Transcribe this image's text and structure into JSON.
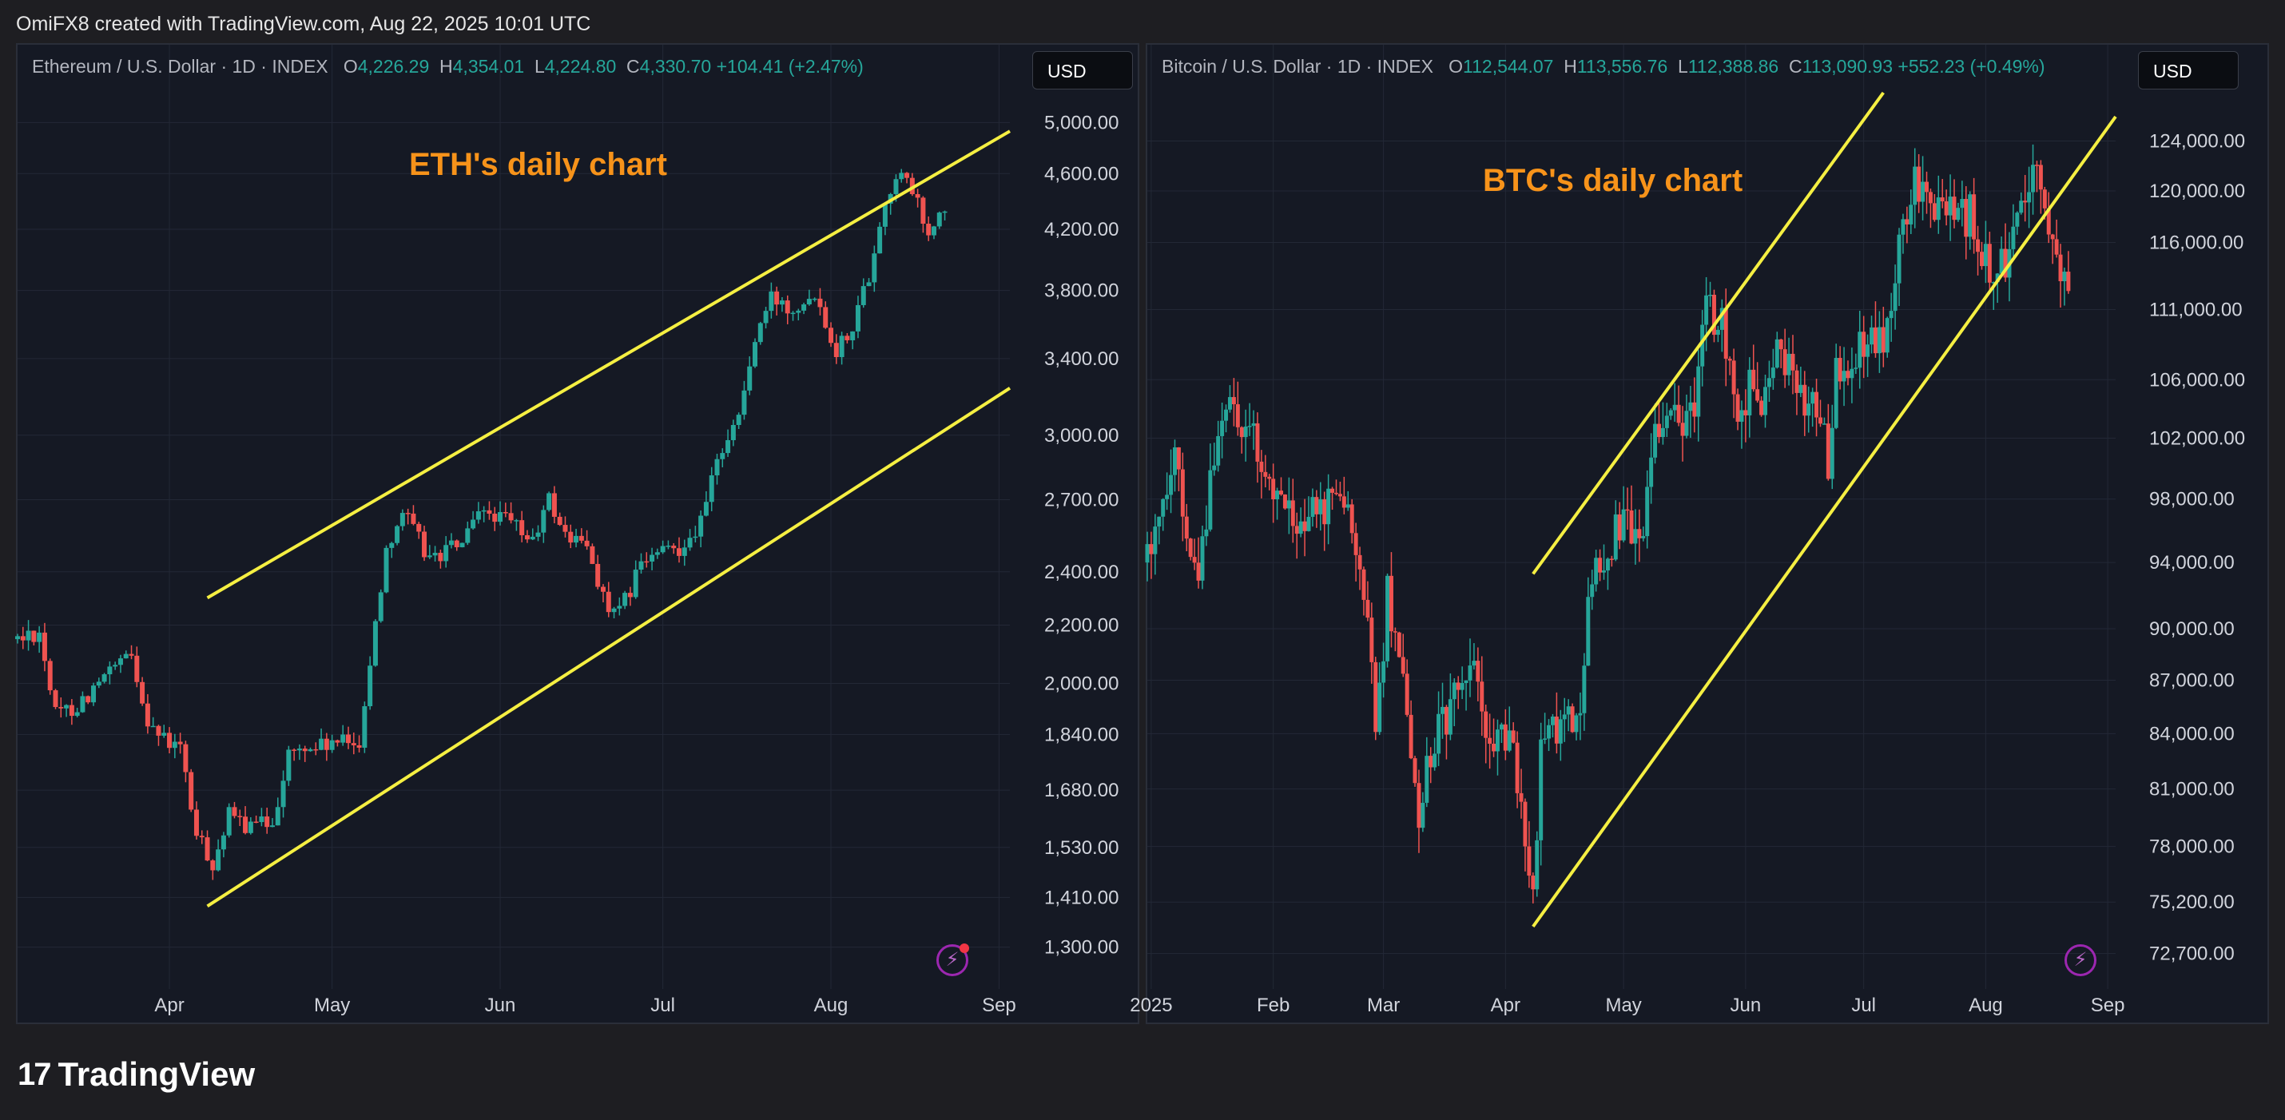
{
  "caption": "OmiFX8 created with TradingView.com, Aug 22, 2025 10:01 UTC",
  "footer_brand": "TradingView",
  "colors": {
    "up": "#26a69a",
    "down": "#ef5350",
    "channel": "#f5ef42",
    "annotation": "#f7931a"
  },
  "charts": [
    {
      "id": "eth",
      "legend": {
        "symbol": "Ethereum / U.S. Dollar · 1D · INDEX",
        "o": "4,226.29",
        "h": "4,354.01",
        "l": "4,224.80",
        "c": "4,330.70",
        "change": "+104.41 (+2.47%)"
      },
      "currency_button": "USD",
      "annotation": "ETH's daily chart",
      "chart_data": {
        "type": "candlestick",
        "title": "ETH's daily chart",
        "y_scale": "log",
        "ylim": [
          1230,
          5250
        ],
        "xlim": [
          "2025-03-04",
          "2025-09-03"
        ],
        "y_ticks": [
          {
            "v": 5000,
            "label": "5,000.00"
          },
          {
            "v": 4600,
            "label": "4,600.00"
          },
          {
            "v": 4200,
            "label": "4,200.00"
          },
          {
            "v": 3800,
            "label": "3,800.00"
          },
          {
            "v": 3400,
            "label": "3,400.00"
          },
          {
            "v": 3000,
            "label": "3,000.00"
          },
          {
            "v": 2700,
            "label": "2,700.00"
          },
          {
            "v": 2400,
            "label": "2,400.00"
          },
          {
            "v": 2200,
            "label": "2,200.00"
          },
          {
            "v": 2000,
            "label": "2,000.00"
          },
          {
            "v": 1840,
            "label": "1,840.00"
          },
          {
            "v": 1680,
            "label": "1,680.00"
          },
          {
            "v": 1530,
            "label": "1,530.00"
          },
          {
            "v": 1410,
            "label": "1,410.00"
          },
          {
            "v": 1300,
            "label": "1,300.00"
          }
        ],
        "x_ticks": [
          {
            "date": "2025-04-01",
            "label": "Apr"
          },
          {
            "date": "2025-05-01",
            "label": "May"
          },
          {
            "date": "2025-06-01",
            "label": "Jun"
          },
          {
            "date": "2025-07-01",
            "label": "Jul"
          },
          {
            "date": "2025-08-01",
            "label": "Aug"
          },
          {
            "date": "2025-09-01",
            "label": "Sep"
          }
        ],
        "anchors": [
          [
            "2025-03-04",
            2150
          ],
          [
            "2025-03-08",
            2180
          ],
          [
            "2025-03-11",
            1900
          ],
          [
            "2025-03-15",
            1930
          ],
          [
            "2025-03-19",
            2000
          ],
          [
            "2025-03-22",
            2050
          ],
          [
            "2025-03-25",
            2090
          ],
          [
            "2025-03-28",
            1890
          ],
          [
            "2025-03-31",
            1820
          ],
          [
            "2025-04-03",
            1800
          ],
          [
            "2025-04-06",
            1560
          ],
          [
            "2025-04-09",
            1490
          ],
          [
            "2025-04-12",
            1610
          ],
          [
            "2025-04-16",
            1580
          ],
          [
            "2025-04-20",
            1600
          ],
          [
            "2025-04-23",
            1780
          ],
          [
            "2025-04-27",
            1800
          ],
          [
            "2025-05-01",
            1810
          ],
          [
            "2025-05-06",
            1820
          ],
          [
            "2025-05-09",
            2200
          ],
          [
            "2025-05-11",
            2500
          ],
          [
            "2025-05-14",
            2650
          ],
          [
            "2025-05-19",
            2450
          ],
          [
            "2025-05-25",
            2520
          ],
          [
            "2025-05-29",
            2650
          ],
          [
            "2025-06-03",
            2600
          ],
          [
            "2025-06-07",
            2520
          ],
          [
            "2025-06-10",
            2700
          ],
          [
            "2025-06-13",
            2550
          ],
          [
            "2025-06-17",
            2500
          ],
          [
            "2025-06-21",
            2250
          ],
          [
            "2025-06-23",
            2240
          ],
          [
            "2025-06-27",
            2430
          ],
          [
            "2025-07-01",
            2480
          ],
          [
            "2025-07-04",
            2500
          ],
          [
            "2025-07-08",
            2600
          ],
          [
            "2025-07-10",
            2780
          ],
          [
            "2025-07-12",
            2950
          ],
          [
            "2025-07-15",
            3100
          ],
          [
            "2025-07-18",
            3500
          ],
          [
            "2025-07-21",
            3750
          ],
          [
            "2025-07-25",
            3700
          ],
          [
            "2025-07-29",
            3800
          ],
          [
            "2025-08-02",
            3450
          ],
          [
            "2025-08-05",
            3600
          ],
          [
            "2025-08-08",
            3900
          ],
          [
            "2025-08-10",
            4250
          ],
          [
            "2025-08-13",
            4600
          ],
          [
            "2025-08-16",
            4480
          ],
          [
            "2025-08-19",
            4150
          ],
          [
            "2025-08-22",
            4330
          ]
        ],
        "channel_lines": [
          [
            [
              "2025-04-08",
              2300
            ],
            [
              "2025-09-03",
              4930
            ]
          ],
          [
            [
              "2025-04-08",
              1390
            ],
            [
              "2025-09-03",
              3240
            ]
          ]
        ]
      }
    },
    {
      "id": "btc",
      "legend": {
        "symbol": "Bitcoin / U.S. Dollar · 1D · INDEX",
        "o": "112,544.07",
        "h": "113,556.76",
        "l": "112,388.86",
        "c": "113,090.93",
        "change": "+552.23 (+0.49%)"
      },
      "currency_button": "USD",
      "annotation": "BTC's daily chart",
      "chart_data": {
        "type": "candlestick",
        "title": "BTC's daily chart",
        "y_scale": "log",
        "ylim": [
          71400,
          128000
        ],
        "xlim": [
          "2024-12-31",
          "2025-09-03"
        ],
        "y_ticks": [
          {
            "v": 124000,
            "label": "124,000.00"
          },
          {
            "v": 120000,
            "label": "120,000.00"
          },
          {
            "v": 116000,
            "label": "116,000.00"
          },
          {
            "v": 111000,
            "label": "111,000.00"
          },
          {
            "v": 106000,
            "label": "106,000.00"
          },
          {
            "v": 102000,
            "label": "102,000.00"
          },
          {
            "v": 98000,
            "label": "98,000.00"
          },
          {
            "v": 94000,
            "label": "94,000.00"
          },
          {
            "v": 90000,
            "label": "90,000.00"
          },
          {
            "v": 87000,
            "label": "87,000.00"
          },
          {
            "v": 84000,
            "label": "84,000.00"
          },
          {
            "v": 81000,
            "label": "81,000.00"
          },
          {
            "v": 78000,
            "label": "78,000.00"
          },
          {
            "v": 75200,
            "label": "75,200.00"
          },
          {
            "v": 72700,
            "label": "72,700.00"
          }
        ],
        "x_ticks": [
          {
            "date": "2025-01-01",
            "label": "2025"
          },
          {
            "date": "2025-02-01",
            "label": "Feb"
          },
          {
            "date": "2025-03-01",
            "label": "Mar"
          },
          {
            "date": "2025-04-01",
            "label": "Apr"
          },
          {
            "date": "2025-05-01",
            "label": "May"
          },
          {
            "date": "2025-06-01",
            "label": "Jun"
          },
          {
            "date": "2025-07-01",
            "label": "Jul"
          },
          {
            "date": "2025-08-01",
            "label": "Aug"
          },
          {
            "date": "2025-09-01",
            "label": "Sep"
          }
        ],
        "anchors": [
          [
            "2024-12-31",
            94000
          ],
          [
            "2025-01-04",
            98000
          ],
          [
            "2025-01-07",
            100500
          ],
          [
            "2025-01-10",
            94500
          ],
          [
            "2025-01-13",
            93000
          ],
          [
            "2025-01-16",
            99500
          ],
          [
            "2025-01-20",
            105000
          ],
          [
            "2025-01-23",
            104000
          ],
          [
            "2025-01-27",
            102000
          ],
          [
            "2025-02-01",
            98000
          ],
          [
            "2025-02-05",
            97500
          ],
          [
            "2025-02-10",
            96500
          ],
          [
            "2025-02-15",
            97500
          ],
          [
            "2025-02-20",
            97000
          ],
          [
            "2025-02-24",
            92000
          ],
          [
            "2025-02-27",
            84500
          ],
          [
            "2025-03-02",
            92000
          ],
          [
            "2025-03-06",
            87500
          ],
          [
            "2025-03-10",
            80000
          ],
          [
            "2025-03-15",
            84000
          ],
          [
            "2025-03-20",
            86500
          ],
          [
            "2025-03-24",
            88000
          ],
          [
            "2025-03-28",
            83000
          ],
          [
            "2025-04-02",
            84500
          ],
          [
            "2025-04-06",
            78500
          ],
          [
            "2025-04-08",
            76500
          ],
          [
            "2025-04-10",
            82500
          ],
          [
            "2025-04-15",
            84500
          ],
          [
            "2025-04-20",
            85000
          ],
          [
            "2025-04-22",
            91500
          ],
          [
            "2025-04-26",
            94500
          ],
          [
            "2025-05-01",
            96500
          ],
          [
            "2025-05-05",
            94500
          ],
          [
            "2025-05-09",
            103000
          ],
          [
            "2025-05-14",
            103500
          ],
          [
            "2025-05-18",
            103000
          ],
          [
            "2025-05-22",
            111000
          ],
          [
            "2025-05-26",
            109500
          ],
          [
            "2025-05-30",
            104000
          ],
          [
            "2025-06-03",
            105500
          ],
          [
            "2025-06-06",
            104000
          ],
          [
            "2025-06-09",
            110000
          ],
          [
            "2025-06-13",
            105500
          ],
          [
            "2025-06-18",
            104500
          ],
          [
            "2025-06-22",
            100500
          ],
          [
            "2025-06-24",
            106000
          ],
          [
            "2025-06-28",
            107500
          ],
          [
            "2025-07-02",
            108500
          ],
          [
            "2025-07-06",
            108500
          ],
          [
            "2025-07-10",
            116000
          ],
          [
            "2025-07-14",
            121500
          ],
          [
            "2025-07-18",
            118000
          ],
          [
            "2025-07-23",
            118500
          ],
          [
            "2025-07-28",
            118000
          ],
          [
            "2025-08-02",
            114000
          ],
          [
            "2025-08-06",
            115000
          ],
          [
            "2025-08-10",
            119000
          ],
          [
            "2025-08-14",
            123500
          ],
          [
            "2025-08-16",
            117500
          ],
          [
            "2025-08-19",
            113500
          ],
          [
            "2025-08-22",
            113090
          ]
        ],
        "channel_lines": [
          [
            [
              "2025-04-08",
              93300
            ],
            [
              "2025-07-06",
              128000
            ]
          ],
          [
            [
              "2025-04-08",
              74000
            ],
            [
              "2025-09-03",
              126000
            ]
          ]
        ]
      }
    }
  ]
}
